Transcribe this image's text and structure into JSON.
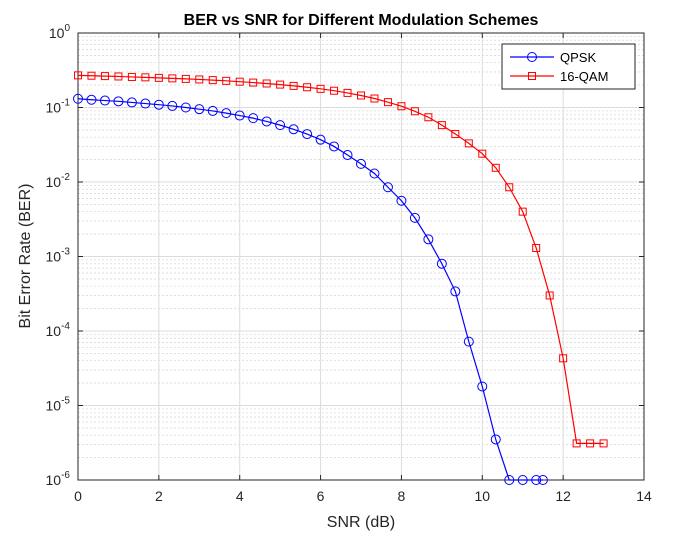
{
  "chart_data": {
    "type": "line",
    "title": "BER vs SNR for Different Modulation Schemes",
    "xlabel": "SNR (dB)",
    "ylabel": "Bit Error Rate (BER)",
    "xlim": [
      0,
      14
    ],
    "ylim": [
      1e-06,
      1
    ],
    "yscale": "log",
    "grid": true,
    "minor_grid": true,
    "legend_position": "top-right",
    "x_ticks": [
      "0",
      "2",
      "4",
      "6",
      "8",
      "10",
      "12",
      "14"
    ],
    "y_ticks": [
      {
        "base": "10",
        "exp": "-6"
      },
      {
        "base": "10",
        "exp": "-5"
      },
      {
        "base": "10",
        "exp": "-4"
      },
      {
        "base": "10",
        "exp": "-3"
      },
      {
        "base": "10",
        "exp": "-2"
      },
      {
        "base": "10",
        "exp": "-1"
      },
      {
        "base": "10",
        "exp": "0"
      }
    ],
    "series": [
      {
        "name": "QPSK",
        "color": "#0000ff",
        "marker": "circle",
        "x": [
          0,
          0.3333,
          0.6667,
          1.0,
          1.3333,
          1.6667,
          2.0,
          2.3333,
          2.6667,
          3.0,
          3.3333,
          3.6667,
          4.0,
          4.3333,
          4.6667,
          5.0,
          5.3333,
          5.6667,
          6.0,
          6.3333,
          6.6667,
          7.0,
          7.3333,
          7.6667,
          8.0,
          8.3333,
          8.6667,
          9.0,
          9.3333,
          9.6667,
          10.0,
          10.3333,
          10.6667,
          11.0,
          11.3333,
          11.5
        ],
        "y": [
          0.131,
          0.127,
          0.124,
          0.121,
          0.117,
          0.113,
          0.109,
          0.105,
          0.1,
          0.095,
          0.09,
          0.084,
          0.078,
          0.072,
          0.065,
          0.058,
          0.051,
          0.044,
          0.037,
          0.03,
          0.023,
          0.0175,
          0.013,
          0.0085,
          0.0056,
          0.0033,
          0.0017,
          0.0008,
          0.00034,
          7.2e-05,
          1.8e-05,
          3.5e-06,
          1e-06,
          1e-06,
          1e-06,
          1e-06
        ]
      },
      {
        "name": "16-QAM",
        "color": "#ff0000",
        "marker": "square",
        "x": [
          0,
          0.3333,
          0.6667,
          1.0,
          1.3333,
          1.6667,
          2.0,
          2.3333,
          2.6667,
          3.0,
          3.3333,
          3.6667,
          4.0,
          4.3333,
          4.6667,
          5.0,
          5.3333,
          5.6667,
          6.0,
          6.3333,
          6.6667,
          7.0,
          7.3333,
          7.6667,
          8.0,
          8.3333,
          8.6667,
          9.0,
          9.3333,
          9.6667,
          10.0,
          10.3333,
          10.6667,
          11.0,
          11.3333,
          11.6667,
          12.0,
          12.3333,
          12.6667,
          13.0
        ],
        "y": [
          0.27,
          0.267,
          0.264,
          0.261,
          0.257,
          0.254,
          0.25,
          0.246,
          0.242,
          0.238,
          0.233,
          0.228,
          0.222,
          0.216,
          0.21,
          0.203,
          0.195,
          0.187,
          0.178,
          0.168,
          0.157,
          0.145,
          0.132,
          0.118,
          0.104,
          0.089,
          0.074,
          0.058,
          0.044,
          0.033,
          0.024,
          0.0155,
          0.0085,
          0.004,
          0.0013,
          0.0003,
          4.3e-05,
          3.1e-06,
          3.1e-06,
          3.1e-06
        ]
      }
    ]
  }
}
